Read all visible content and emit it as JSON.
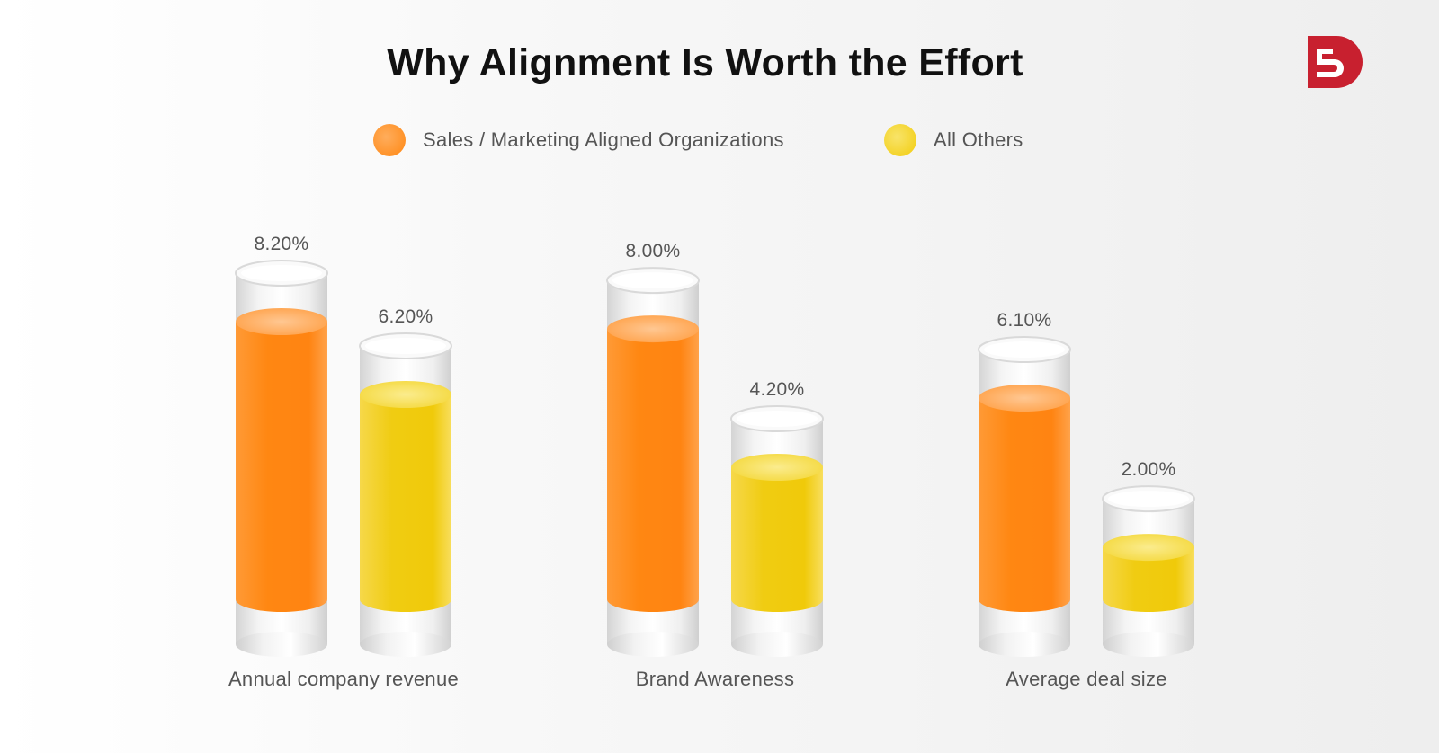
{
  "header": {
    "title": "Why Alignment Is Worth the Effort",
    "logo_icon": "brand-logo-icon",
    "logo_color": "#c8202f"
  },
  "legend": [
    {
      "label": "Sales / Marketing Aligned Organizations",
      "color": "#ff8712"
    },
    {
      "label": "All Others",
      "color": "#f2cc0c"
    }
  ],
  "chart_data": {
    "type": "bar",
    "title": "Why Alignment Is Worth the Effort",
    "categories": [
      "Annual company revenue",
      "Brand Awareness",
      "Average deal size"
    ],
    "series": [
      {
        "name": "Sales / Marketing Aligned Organizations",
        "color": "#ff8712",
        "values": [
          8.2,
          8.0,
          6.1
        ],
        "labels": [
          "8.20%",
          "8.00%",
          "6.10%"
        ]
      },
      {
        "name": "All Others",
        "color": "#f2cc0c",
        "values": [
          6.2,
          4.2,
          2.0
        ],
        "labels": [
          "6.20%",
          "4.20%",
          "2.00%"
        ]
      }
    ],
    "legend_position": "top",
    "grid": false,
    "xlabel": "",
    "ylabel": ""
  }
}
